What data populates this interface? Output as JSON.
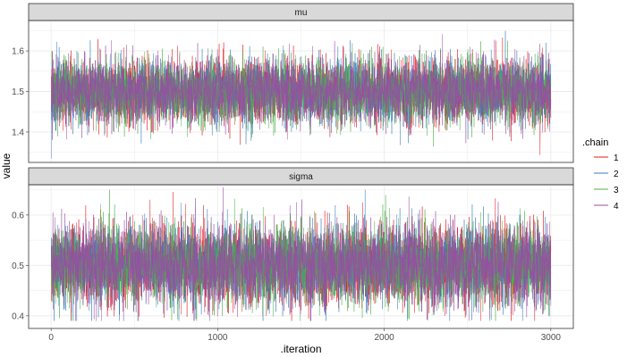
{
  "chart_data": {
    "type": "line",
    "xlabel": ".iteration",
    "ylabel": "value",
    "xlim": [
      0,
      3000
    ],
    "x_ticks": [
      0,
      1000,
      2000,
      3000
    ],
    "iterations": 3000,
    "legend": {
      "title": ".chain",
      "position": "right"
    },
    "series": [
      {
        "name": "1",
        "color": "#E41A1C"
      },
      {
        "name": "2",
        "color": "#377EB8"
      },
      {
        "name": "3",
        "color": "#4DAF4A"
      },
      {
        "name": "4",
        "color": "#984EA3"
      }
    ],
    "panels": [
      {
        "strip_label": "mu",
        "ylim": [
          1.325,
          1.675
        ],
        "y_ticks": [
          1.4,
          1.5,
          1.6
        ],
        "y_tick_labels": [
          "1.4",
          "1.5",
          "1.6"
        ],
        "mean": 1.5,
        "sd": 0.04,
        "observed_min": 1.33,
        "observed_max": 1.67
      },
      {
        "strip_label": "sigma",
        "ylim": [
          0.375,
          0.66
        ],
        "y_ticks": [
          0.4,
          0.5,
          0.6
        ],
        "y_tick_labels": [
          "0.4",
          "0.5",
          "0.6"
        ],
        "mean": 0.5,
        "sd": 0.04,
        "observed_min": 0.39,
        "observed_max": 0.655
      }
    ],
    "grid": true,
    "theme": "bw"
  }
}
